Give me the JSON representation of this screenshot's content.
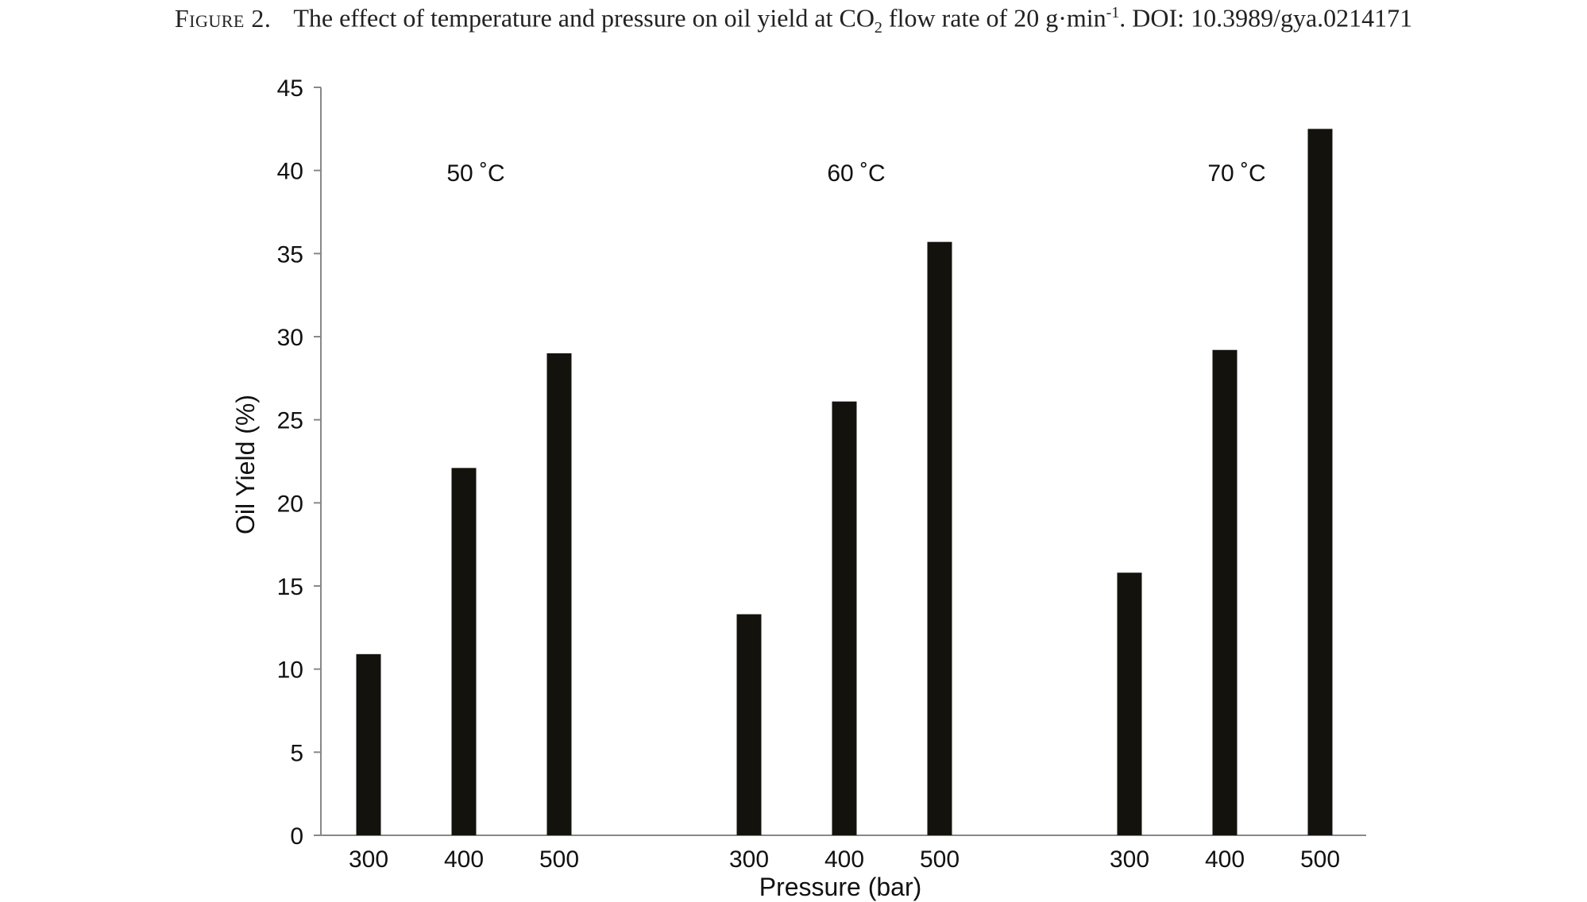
{
  "caption": {
    "figure_label": "Figure 2.",
    "text_before_sub": "The effect of temperature and pressure on oil yield at CO",
    "sub": "2",
    "text_after_sub": " flow rate of 20 g·min",
    "sup": "-1",
    "text_end": ". DOI: 10.3989/gya.0214171"
  },
  "colors": {
    "bar": "#13120d",
    "axis": "#888888",
    "text": "#111111"
  },
  "chart_data": {
    "type": "bar",
    "xlabel": "Pressure (bar)",
    "ylabel": "Oil Yield (%)",
    "ylim": [
      0,
      45
    ],
    "yticks": [
      0,
      5,
      10,
      15,
      20,
      25,
      30,
      35,
      40,
      45
    ],
    "grid": false,
    "groups": [
      {
        "label": "50 ˚C",
        "categories": [
          "300",
          "400",
          "500"
        ],
        "values": [
          10.9,
          22.1,
          29.0
        ]
      },
      {
        "label": "60 ˚C",
        "categories": [
          "300",
          "400",
          "500"
        ],
        "values": [
          13.3,
          26.1,
          35.7
        ]
      },
      {
        "label": "70 ˚C",
        "categories": [
          "300",
          "400",
          "500"
        ],
        "values": [
          15.8,
          29.2,
          42.5
        ]
      }
    ]
  }
}
